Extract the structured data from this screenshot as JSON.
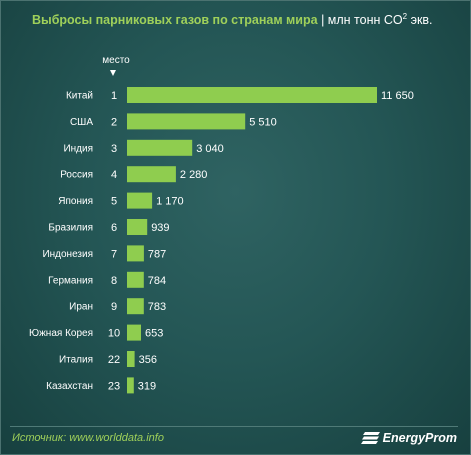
{
  "header": {
    "title": "Выбросы парниковых газов по странам мира",
    "separator": "|",
    "unit_prefix": "млн тонн CO",
    "unit_sup": "2",
    "unit_suffix": " экв.",
    "rank_label": "место"
  },
  "footer": {
    "source": "Источник: www.worlddata.info",
    "logo_text": "EnergyProm"
  },
  "colors": {
    "bar": "#8fcd4f",
    "accent": "#9fd05a",
    "text": "#ffffff",
    "background": "#245655"
  },
  "chart_data": {
    "type": "bar",
    "orientation": "horizontal",
    "categories": [
      "Китай",
      "США",
      "Индия",
      "Россия",
      "Япония",
      "Бразилия",
      "Индонезия",
      "Германия",
      "Иран",
      "Южная Корея",
      "Италия",
      "Казахстан"
    ],
    "ranks": [
      "1",
      "2",
      "3",
      "4",
      "5",
      "6",
      "7",
      "8",
      "9",
      "10",
      "22",
      "23"
    ],
    "values": [
      11650,
      5510,
      3040,
      2280,
      1170,
      939,
      787,
      784,
      783,
      653,
      356,
      319
    ],
    "value_labels": [
      "11 650",
      "5 510",
      "3 040",
      "2 280",
      "1 170",
      "939",
      "787",
      "784",
      "783",
      "653",
      "356",
      "319"
    ],
    "xlim": [
      0,
      11650
    ],
    "grid": false,
    "legend": "none"
  }
}
